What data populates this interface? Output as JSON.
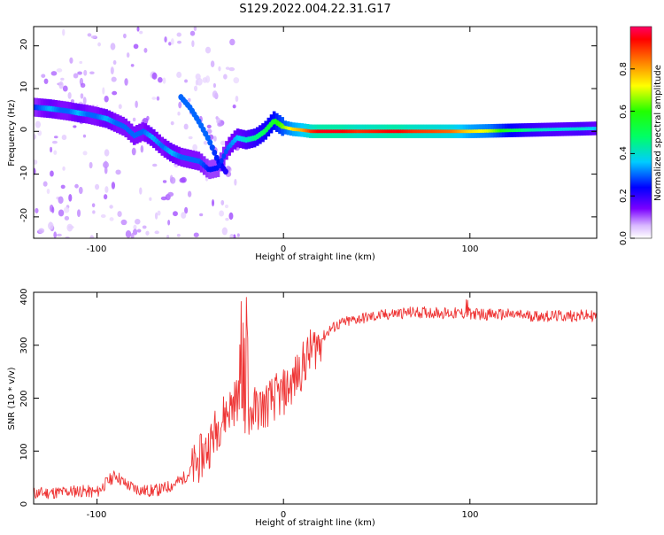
{
  "title": "S129.2022.004.22.31.G17",
  "colors": {
    "snr_line": "#ee3333"
  },
  "chart_data": [
    {
      "type": "heatmap",
      "xlabel": "Height of straight line (km)",
      "ylabel": "Frequency (Hz)",
      "xlim": [
        -134,
        168
      ],
      "ylim": [
        -25,
        24.5
      ],
      "x_ticks": [
        "-100",
        "0",
        "100"
      ],
      "y_ticks": [
        "-20",
        "-10",
        "0",
        "10",
        "20"
      ],
      "colorbar": {
        "label": "Normalized spectral amplitude",
        "range": [
          0,
          1
        ],
        "ticks": [
          "0.0",
          "0.2",
          "0.4",
          "0.6",
          "0.8"
        ]
      },
      "ridge": [
        {
          "x": -130,
          "f": 5.5,
          "a": 0.3
        },
        {
          "x": -125,
          "f": 5.3,
          "a": 0.35
        },
        {
          "x": -120,
          "f": 5.0,
          "a": 0.3
        },
        {
          "x": -115,
          "f": 4.7,
          "a": 0.3
        },
        {
          "x": -110,
          "f": 4.3,
          "a": 0.35
        },
        {
          "x": -105,
          "f": 4.0,
          "a": 0.3
        },
        {
          "x": -100,
          "f": 3.5,
          "a": 0.3
        },
        {
          "x": -95,
          "f": 3.0,
          "a": 0.35
        },
        {
          "x": -90,
          "f": 2.0,
          "a": 0.3
        },
        {
          "x": -85,
          "f": 1.0,
          "a": 0.3
        },
        {
          "x": -80,
          "f": -1.0,
          "a": 0.3
        },
        {
          "x": -75,
          "f": 0.0,
          "a": 0.3
        },
        {
          "x": -70,
          "f": -1.5,
          "a": 0.35
        },
        {
          "x": -65,
          "f": -3.5,
          "a": 0.3
        },
        {
          "x": -60,
          "f": -5.0,
          "a": 0.35
        },
        {
          "x": -55,
          "f": -6.0,
          "a": 0.3
        },
        {
          "x": -50,
          "f": -6.5,
          "a": 0.3
        },
        {
          "x": -45,
          "f": -7.0,
          "a": 0.3
        },
        {
          "x": -40,
          "f": -9.0,
          "a": 0.25
        },
        {
          "x": -35,
          "f": -8.5,
          "a": 0.25
        },
        {
          "x": -30,
          "f": -4.0,
          "a": 0.3
        },
        {
          "x": -25,
          "f": -1.5,
          "a": 0.35
        },
        {
          "x": -20,
          "f": -2.0,
          "a": 0.4
        },
        {
          "x": -15,
          "f": -1.5,
          "a": 0.45
        },
        {
          "x": -10,
          "f": 0.0,
          "a": 0.5
        },
        {
          "x": -5,
          "f": 2.5,
          "a": 0.55
        },
        {
          "x": 0,
          "f": 1.0,
          "a": 0.65
        },
        {
          "x": 5,
          "f": 0.5,
          "a": 0.75
        },
        {
          "x": 10,
          "f": 0.3,
          "a": 0.8
        },
        {
          "x": 15,
          "f": 0.0,
          "a": 0.9
        },
        {
          "x": 20,
          "f": 0.0,
          "a": 0.95
        },
        {
          "x": 30,
          "f": 0.0,
          "a": 0.95
        },
        {
          "x": 40,
          "f": 0.0,
          "a": 0.9
        },
        {
          "x": 50,
          "f": 0.0,
          "a": 0.92
        },
        {
          "x": 60,
          "f": 0.0,
          "a": 0.95
        },
        {
          "x": 70,
          "f": 0.0,
          "a": 0.9
        },
        {
          "x": 80,
          "f": 0.0,
          "a": 0.88
        },
        {
          "x": 90,
          "f": 0.0,
          "a": 0.85
        },
        {
          "x": 100,
          "f": 0.0,
          "a": 0.75
        },
        {
          "x": 110,
          "f": 0.1,
          "a": 0.7
        },
        {
          "x": 120,
          "f": 0.2,
          "a": 0.55
        },
        {
          "x": 130,
          "f": 0.3,
          "a": 0.45
        },
        {
          "x": 140,
          "f": 0.4,
          "a": 0.4
        },
        {
          "x": 150,
          "f": 0.5,
          "a": 0.38
        },
        {
          "x": 160,
          "f": 0.6,
          "a": 0.4
        },
        {
          "x": 168,
          "f": 0.7,
          "a": 0.35
        }
      ],
      "secondary_ridge": [
        {
          "x": -55,
          "f": 8.0,
          "a": 0.3
        },
        {
          "x": -50,
          "f": 5.5,
          "a": 0.3
        },
        {
          "x": -45,
          "f": 2.0,
          "a": 0.3
        },
        {
          "x": -40,
          "f": -2.0,
          "a": 0.3
        },
        {
          "x": -35,
          "f": -7.0,
          "a": 0.25
        },
        {
          "x": -30,
          "f": -10.0,
          "a": 0.2
        }
      ]
    },
    {
      "type": "line",
      "xlabel": "Height of straight line (km)",
      "ylabel": "SNR (10 * v/v)",
      "xlim": [
        -134,
        168
      ],
      "ylim": [
        0,
        400
      ],
      "x_ticks": [
        "-100",
        "0",
        "100"
      ],
      "y_ticks": [
        "0",
        "100",
        "200",
        "300",
        "400"
      ],
      "series": [
        {
          "points": [
            [
              -134,
              20
            ],
            [
              -120,
              22
            ],
            [
              -110,
              25
            ],
            [
              -100,
              22
            ],
            [
              -95,
              40
            ],
            [
              -90,
              55
            ],
            [
              -85,
              38
            ],
            [
              -80,
              30
            ],
            [
              -75,
              25
            ],
            [
              -70,
              25
            ],
            [
              -65,
              28
            ],
            [
              -60,
              35
            ],
            [
              -55,
              45
            ],
            [
              -50,
              60
            ],
            [
              -45,
              85
            ],
            [
              -40,
              110
            ],
            [
              -35,
              150
            ],
            [
              -30,
              175
            ],
            [
              -25,
              200
            ],
            [
              -20,
              165
            ],
            [
              -15,
              180
            ],
            [
              -10,
              185
            ],
            [
              -5,
              200
            ],
            [
              0,
              210
            ],
            [
              5,
              230
            ],
            [
              10,
              260
            ],
            [
              15,
              290
            ],
            [
              20,
              310
            ],
            [
              25,
              330
            ],
            [
              30,
              340
            ],
            [
              40,
              350
            ],
            [
              50,
              355
            ],
            [
              60,
              360
            ],
            [
              70,
              362
            ],
            [
              80,
              362
            ],
            [
              90,
              360
            ],
            [
              100,
              360
            ],
            [
              110,
              358
            ],
            [
              120,
              358
            ],
            [
              130,
              356
            ],
            [
              140,
              355
            ],
            [
              150,
              355
            ],
            [
              160,
              356
            ],
            [
              168,
              355
            ]
          ]
        }
      ]
    }
  ]
}
